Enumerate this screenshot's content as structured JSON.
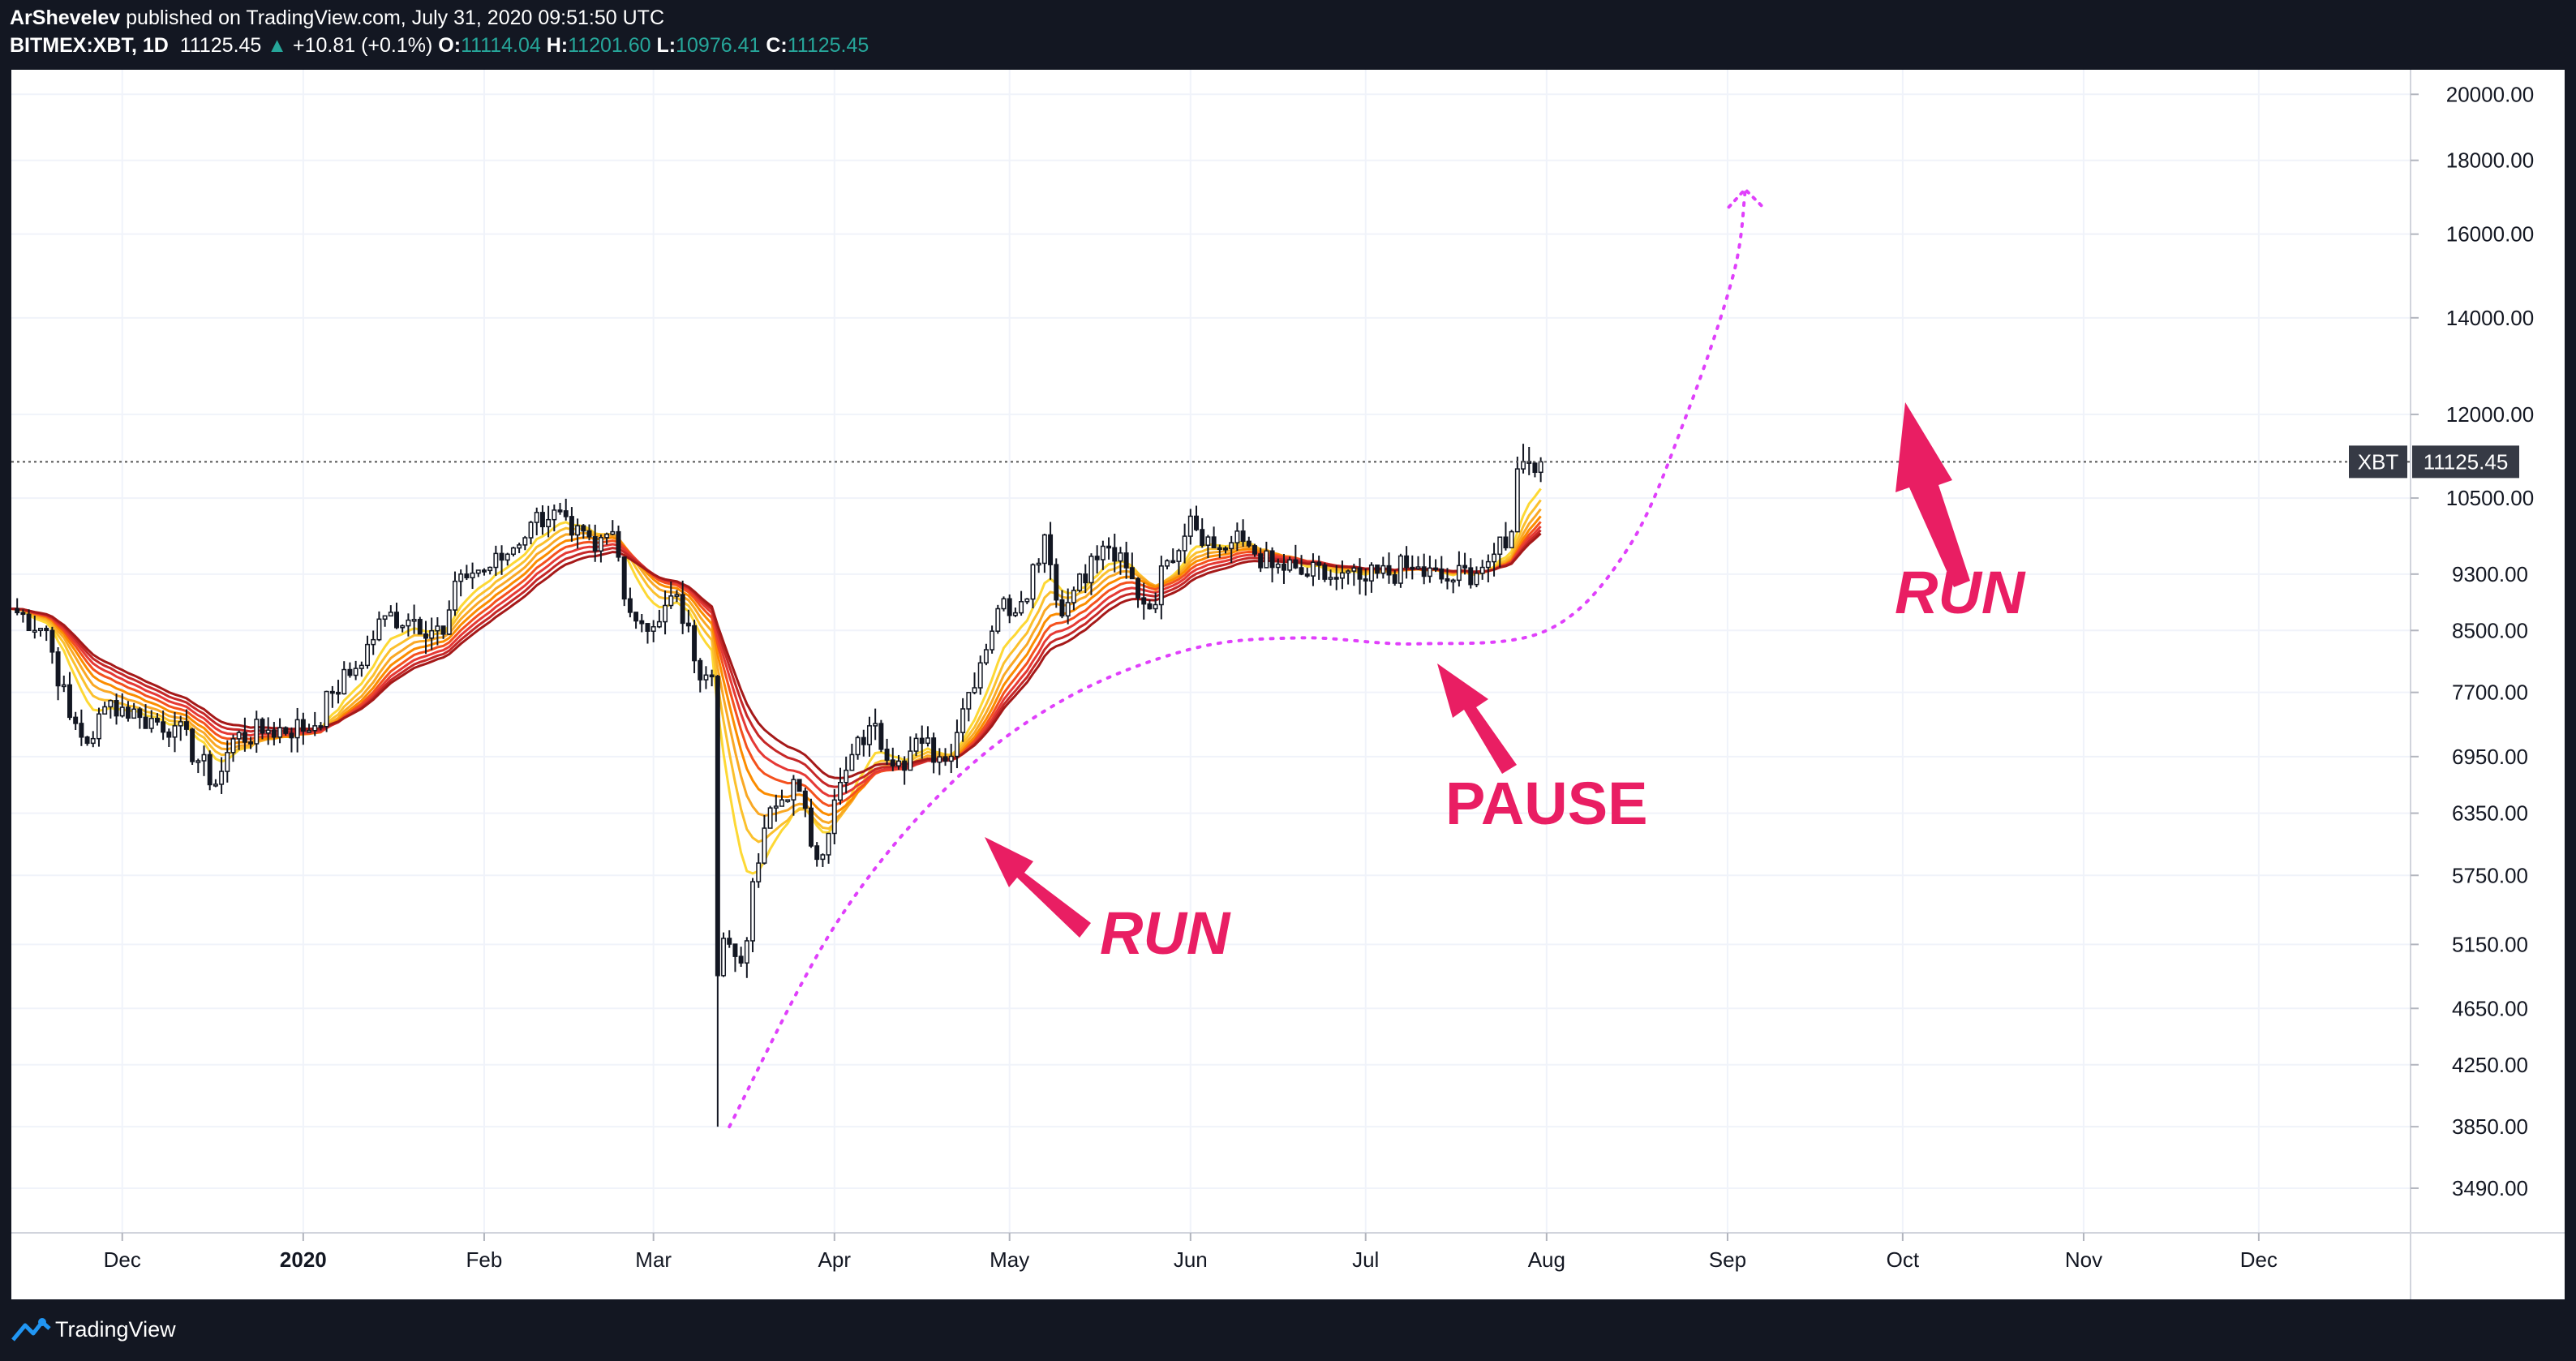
{
  "header": {
    "author": "ArShevelev",
    "published_text": "published on TradingView.com, July 31, 2020 09:51:50 UTC",
    "symbol": "BITMEX:XBT, 1D",
    "last": "11125.45",
    "change": "+10.81 (+0.1%)",
    "o_label": "O:",
    "o_value": "11114.04",
    "h_label": "H:",
    "h_value": "11201.60",
    "l_label": "L:",
    "l_value": "10976.41",
    "c_label": "C:",
    "c_value": "11125.45"
  },
  "price_tag": {
    "symbol": "XBT",
    "value": "11125.45"
  },
  "annotations": {
    "run1": "RUN",
    "pause": "PAUSE",
    "run2": "RUN"
  },
  "footer": {
    "brand": "TradingView"
  },
  "colors": {
    "up": "#26a69a",
    "background": "#131722",
    "arrow": "#e91e63",
    "path": "#e040fb"
  },
  "chart_data": {
    "type": "candlestick",
    "x_ticks": [
      "Dec",
      "2020",
      "Feb",
      "Mar",
      "Apr",
      "May",
      "Jun",
      "Jul",
      "Aug",
      "Sep",
      "Oct",
      "Nov",
      "Dec"
    ],
    "y_ticks": [
      3490,
      3850,
      4250,
      4650,
      5150,
      5750,
      6350,
      6950,
      7700,
      8500,
      9300,
      10500,
      12000,
      14000,
      16000,
      18000,
      20000
    ],
    "y_scale": "log",
    "ylim": [
      3250,
      20800
    ],
    "x_range": [
      "2019-11-12",
      "2020-12-27"
    ],
    "current_price": 11125.45,
    "close_path": [
      [
        "2019-11-12",
        8800
      ],
      [
        "2019-11-18",
        8500
      ],
      [
        "2019-11-22",
        7400
      ],
      [
        "2019-11-25",
        7100
      ],
      [
        "2019-11-29",
        7600
      ],
      [
        "2019-12-04",
        7400
      ],
      [
        "2019-12-10",
        7300
      ],
      [
        "2019-12-17",
        6650
      ],
      [
        "2019-12-20",
        7150
      ],
      [
        "2019-12-26",
        7250
      ],
      [
        "2020-01-03",
        7300
      ],
      [
        "2020-01-06",
        7700
      ],
      [
        "2020-01-10",
        8000
      ],
      [
        "2020-01-15",
        8700
      ],
      [
        "2020-01-20",
        8650
      ],
      [
        "2020-01-25",
        8450
      ],
      [
        "2020-01-28",
        9300
      ],
      [
        "2020-02-02",
        9400
      ],
      [
        "2020-02-05",
        9600
      ],
      [
        "2020-02-09",
        10100
      ],
      [
        "2020-02-13",
        10300
      ],
      [
        "2020-02-16",
        9900
      ],
      [
        "2020-02-20",
        9650
      ],
      [
        "2020-02-23",
        9950
      ],
      [
        "2020-02-26",
        8750
      ],
      [
        "2020-03-01",
        8550
      ],
      [
        "2020-03-05",
        9000
      ],
      [
        "2020-03-08",
        8100
      ],
      [
        "2020-03-11",
        7900
      ],
      [
        "2020-03-12",
        4900
      ],
      [
        "2020-03-13",
        5200
      ],
      [
        "2020-03-16",
        5000
      ],
      [
        "2020-03-20",
        6200
      ],
      [
        "2020-03-25",
        6700
      ],
      [
        "2020-03-29",
        5900
      ],
      [
        "2020-04-03",
        6800
      ],
      [
        "2020-04-07",
        7300
      ],
      [
        "2020-04-12",
        6900
      ],
      [
        "2020-04-16",
        7100
      ],
      [
        "2020-04-20",
        6900
      ],
      [
        "2020-04-23",
        7500
      ],
      [
        "2020-04-29",
        8800
      ],
      [
        "2020-05-03",
        8900
      ],
      [
        "2020-05-07",
        9900
      ],
      [
        "2020-05-10",
        8700
      ],
      [
        "2020-05-13",
        9300
      ],
      [
        "2020-05-18",
        9700
      ],
      [
        "2020-05-25",
        8800
      ],
      [
        "2020-05-28",
        9500
      ],
      [
        "2020-06-01",
        10200
      ],
      [
        "2020-06-05",
        9700
      ],
      [
        "2020-06-10",
        9800
      ],
      [
        "2020-06-15",
        9400
      ],
      [
        "2020-06-20",
        9300
      ],
      [
        "2020-06-25",
        9250
      ],
      [
        "2020-07-01",
        9200
      ],
      [
        "2020-07-08",
        9400
      ],
      [
        "2020-07-15",
        9200
      ],
      [
        "2020-07-21",
        9400
      ],
      [
        "2020-07-23",
        9600
      ],
      [
        "2020-07-25",
        9700
      ],
      [
        "2020-07-26",
        9950
      ],
      [
        "2020-07-27",
        11000
      ],
      [
        "2020-07-29",
        11100
      ],
      [
        "2020-07-31",
        11125.45
      ]
    ],
    "forecast_path": [
      [
        "2020-03-14",
        3850
      ],
      [
        "2020-04-01",
        5300
      ],
      [
        "2020-04-20",
        6600
      ],
      [
        "2020-05-10",
        7600
      ],
      [
        "2020-06-01",
        8250
      ],
      [
        "2020-06-20",
        8400
      ],
      [
        "2020-07-10",
        8320
      ],
      [
        "2020-08-01",
        8500
      ],
      [
        "2020-08-15",
        9700
      ],
      [
        "2020-08-25",
        12000
      ],
      [
        "2020-09-02",
        15000
      ],
      [
        "2020-09-04",
        17100
      ]
    ]
  }
}
